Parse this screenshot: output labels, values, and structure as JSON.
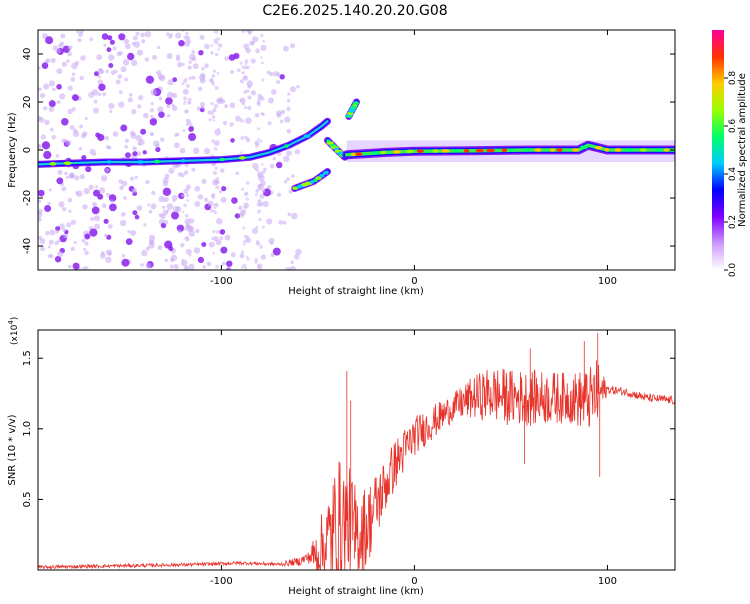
{
  "title": "C2E6.2025.140.20.20.G08",
  "chart_data": [
    {
      "type": "heatmap",
      "xlabel": "Height of straight line (km)",
      "ylabel": "Frequency (Hz)",
      "xlim": [
        -195,
        135
      ],
      "ylim": [
        -50,
        50
      ],
      "xticks": [
        -100,
        0,
        100
      ],
      "yticks": [
        -40,
        -20,
        0,
        20,
        40
      ],
      "colorbar": {
        "label": "Normalized spectral amplitude",
        "range": [
          0,
          1
        ],
        "ticks": [
          0.0,
          0.2,
          0.4,
          0.6,
          0.8
        ],
        "colormap": [
          "#ffffff",
          "#cc99ff",
          "#8000ff",
          "#0000ff",
          "#00ccff",
          "#00ff66",
          "#99ff00",
          "#ffcc00",
          "#ff3300",
          "#ff0099"
        ]
      },
      "traces": [
        {
          "x": [
            -195,
            -180,
            -160,
            -140,
            -120,
            -100,
            -85,
            -75,
            -65,
            -55,
            -48,
            -45
          ],
          "y": [
            -6,
            -5.5,
            -5,
            -5,
            -4.5,
            -4,
            -3,
            -1,
            2,
            6,
            10,
            12
          ]
        },
        {
          "x": [
            -34,
            -30
          ],
          "y": [
            14,
            20
          ]
        },
        {
          "x": [
            -45,
            -40,
            -36
          ],
          "y": [
            4,
            0,
            -3
          ]
        },
        {
          "x": [
            -62,
            -52,
            -45
          ],
          "y": [
            -16,
            -13,
            -9
          ]
        },
        {
          "x": [
            -35,
            -25,
            -15,
            0,
            30,
            60,
            85,
            90,
            100,
            135
          ],
          "y": [
            -2,
            -1.5,
            -1,
            -0.5,
            -0.3,
            0,
            0,
            2,
            0,
            0
          ]
        }
      ],
      "noise_region_x": [
        -195,
        -70
      ]
    },
    {
      "type": "line",
      "xlabel": "Height of straight line (km)",
      "ylabel": "SNR (10 * v/v)",
      "exponent_label": "(x10",
      "exponent_power": "4",
      "exponent_close": ")",
      "xlim": [
        -195,
        135
      ],
      "ylim": [
        0,
        1.7
      ],
      "xticks": [
        -100,
        0,
        100
      ],
      "yticks": [
        0.5,
        1.0,
        1.5
      ],
      "color": "#e8332b",
      "envelope": {
        "x": [
          -195,
          -150,
          -110,
          -90,
          -70,
          -60,
          -50,
          -45,
          -40,
          -35,
          -30,
          -25,
          -20,
          -15,
          -10,
          -5,
          0,
          5,
          10,
          15,
          20,
          30,
          40,
          50,
          60,
          70,
          80,
          90,
          95,
          100,
          110,
          120,
          135
        ],
        "y": [
          0.02,
          0.03,
          0.04,
          0.05,
          0.04,
          0.06,
          0.12,
          0.2,
          0.3,
          0.35,
          0.25,
          0.3,
          0.45,
          0.6,
          0.75,
          0.85,
          0.95,
          1.0,
          1.05,
          1.1,
          1.15,
          1.22,
          1.25,
          1.22,
          1.22,
          1.22,
          1.22,
          1.2,
          1.25,
          1.28,
          1.26,
          1.22,
          1.2
        ]
      },
      "amplitude": {
        "x": [
          -195,
          -70,
          -55,
          -40,
          -30,
          -15,
          0,
          20,
          40,
          60,
          80,
          95,
          100,
          135
        ],
        "y": [
          0.012,
          0.012,
          0.04,
          0.5,
          0.35,
          0.2,
          0.14,
          0.1,
          0.2,
          0.2,
          0.18,
          0.25,
          0.03,
          0.03
        ]
      },
      "spikes": [
        {
          "x": -35,
          "y": 1.41
        },
        {
          "x": -33,
          "y": 1.2
        },
        {
          "x": -36,
          "y": 0.05
        },
        {
          "x": -31,
          "y": 0.08
        },
        {
          "x": 60,
          "y": 1.57
        },
        {
          "x": 88,
          "y": 1.62
        },
        {
          "x": 95,
          "y": 1.68
        },
        {
          "x": 96,
          "y": 0.66
        },
        {
          "x": 57,
          "y": 0.75
        }
      ]
    }
  ]
}
